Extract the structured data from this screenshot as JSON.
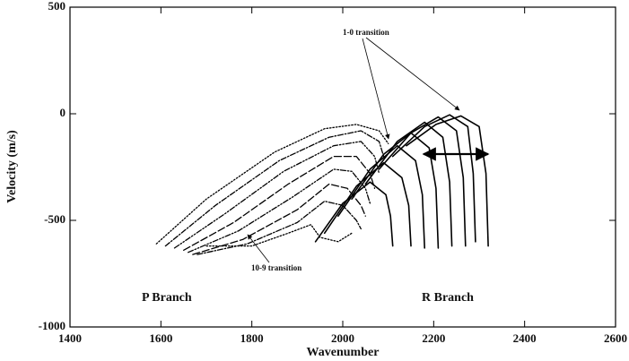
{
  "chart_data": {
    "type": "line",
    "x_label": "Wavenumber",
    "y_label": "Velocity (m/s)",
    "annotations": [
      "1-0 transition",
      "10-9 transition",
      "P Branch",
      "R Branch"
    ],
    "xlim": [
      1400,
      2600
    ],
    "xticks": [
      1400,
      1600,
      1800,
      2000,
      2200,
      2400,
      2600
    ],
    "ylim": [
      -1000,
      500
    ],
    "yticks": [
      -1000,
      -500,
      0,
      500
    ],
    "series": [
      {
        "style": "solid",
        "color": "#000000",
        "x": [
          1940,
          2000,
          2060,
          2095,
          2105,
          2110
        ],
        "values": [
          -600,
          -420,
          -320,
          -380,
          -480,
          -620
        ]
      },
      {
        "style": "solid",
        "color": "#000000",
        "x": [
          1960,
          2030,
          2090,
          2130,
          2145,
          2150
        ],
        "values": [
          -560,
          -340,
          -230,
          -300,
          -430,
          -620
        ]
      },
      {
        "style": "solid",
        "color": "#000000",
        "x": [
          1990,
          2060,
          2120,
          2160,
          2175,
          2180
        ],
        "values": [
          -480,
          -260,
          -150,
          -220,
          -380,
          -630
        ]
      },
      {
        "style": "solid",
        "color": "#000000",
        "x": [
          2020,
          2090,
          2150,
          2190,
          2205,
          2210
        ],
        "values": [
          -400,
          -190,
          -90,
          -160,
          -350,
          -630
        ]
      },
      {
        "style": "solid",
        "color": "#000000",
        "x": [
          2050,
          2120,
          2180,
          2220,
          2235,
          2240
        ],
        "values": [
          -330,
          -130,
          -40,
          -110,
          -320,
          -620
        ]
      },
      {
        "style": "solid",
        "color": "#000000",
        "x": [
          2080,
          2150,
          2210,
          2250,
          2265,
          2270
        ],
        "values": [
          -260,
          -90,
          -15,
          -80,
          -300,
          -620
        ]
      },
      {
        "style": "solid",
        "color": "#000000",
        "x": [
          2110,
          2180,
          2235,
          2275,
          2287,
          2292
        ],
        "values": [
          -200,
          -60,
          -5,
          -60,
          -280,
          -600
        ]
      },
      {
        "style": "solid",
        "color": "#000000",
        "x": [
          2140,
          2205,
          2260,
          2300,
          2315,
          2320
        ],
        "values": [
          -150,
          -50,
          -10,
          -60,
          -280,
          -620
        ]
      },
      {
        "style": "dotted",
        "color": "#000000",
        "x": [
          1590,
          1700,
          1850,
          1960,
          2030,
          2080,
          2100
        ],
        "values": [
          -610,
          -400,
          -180,
          -70,
          -50,
          -80,
          -140
        ]
      },
      {
        "style": "dashdot",
        "color": "#000000",
        "x": [
          1610,
          1720,
          1860,
          1970,
          2040,
          2080,
          2090
        ],
        "values": [
          -620,
          -430,
          -220,
          -110,
          -80,
          -130,
          -200
        ]
      },
      {
        "style": "dashdotdot",
        "color": "#000000",
        "x": [
          1630,
          1740,
          1870,
          1980,
          2040,
          2070,
          2080
        ],
        "values": [
          -630,
          -470,
          -270,
          -150,
          -130,
          -200,
          -280
        ]
      },
      {
        "style": "longdash",
        "color": "#000000",
        "x": [
          1650,
          1760,
          1880,
          1980,
          2030,
          2060,
          2070
        ],
        "values": [
          -640,
          -510,
          -330,
          -200,
          -200,
          -280,
          -350
        ]
      },
      {
        "style": "dashdotdot",
        "color": "#000000",
        "x": [
          1660,
          1770,
          1890,
          1980,
          2020,
          2050,
          2060
        ],
        "values": [
          -650,
          -550,
          -390,
          -260,
          -270,
          -350,
          -420
        ]
      },
      {
        "style": "longdash",
        "color": "#000000",
        "x": [
          1670,
          1780,
          1900,
          1970,
          2010,
          2040,
          2050
        ],
        "values": [
          -660,
          -590,
          -450,
          -330,
          -350,
          -430,
          -480
        ]
      },
      {
        "style": "dashdot",
        "color": "#000000",
        "x": [
          1680,
          1790,
          1900,
          1960,
          2000,
          2030,
          2040
        ],
        "values": [
          -660,
          -610,
          -510,
          -410,
          -430,
          -500,
          -540
        ]
      },
      {
        "style": "dotted",
        "color": "#000000",
        "x": [
          1700,
          1800,
          1880,
          1930,
          1950,
          1990,
          2020
        ],
        "values": [
          -620,
          -620,
          -560,
          -520,
          -580,
          -600,
          -560
        ]
      }
    ]
  }
}
